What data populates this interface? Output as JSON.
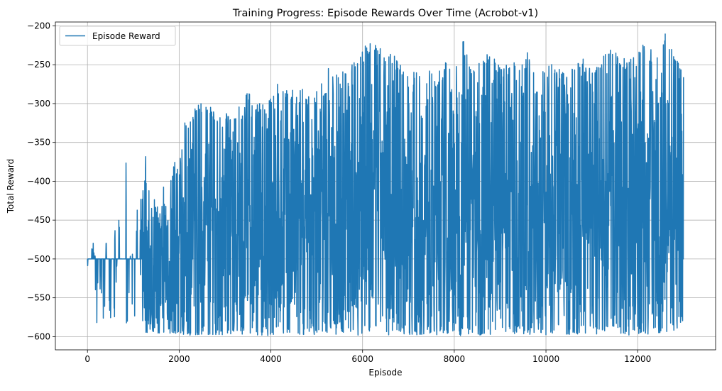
{
  "chart_data": {
    "type": "line",
    "title": "Training Progress: Episode Rewards Over Time (Acrobot-v1)",
    "xlabel": "Episode",
    "ylabel": "Total Reward",
    "xlim": [
      -700,
      13700
    ],
    "ylim": [
      -617,
      -195
    ],
    "xticks": [
      0,
      2000,
      4000,
      6000,
      8000,
      10000,
      12000
    ],
    "xtick_labels": [
      "0",
      "2000",
      "4000",
      "6000",
      "8000",
      "10000",
      "12000"
    ],
    "yticks": [
      -600,
      -550,
      -500,
      -450,
      -400,
      -350,
      -300,
      -250,
      -200
    ],
    "ytick_labels": [
      "−600",
      "−550",
      "−500",
      "−450",
      "−400",
      "−350",
      "−300",
      "−250",
      "−200"
    ],
    "grid": true,
    "legend_position": "top-left",
    "series": [
      {
        "name": "Episode Reward",
        "color": "#1f77b4",
        "x": [
          0,
          150,
          200,
          250,
          350,
          500,
          700,
          760,
          900,
          1000,
          1150,
          1230,
          1300,
          1400,
          1600,
          1750,
          1800,
          2000,
          2100,
          2200,
          2400,
          2600,
          2800,
          3000,
          3200,
          3400,
          3600,
          3800,
          4000,
          4200,
          4400,
          4600,
          4800,
          5000,
          5200,
          5400,
          5600,
          5800,
          6000,
          6200,
          6400,
          6600,
          6800,
          7000,
          7200,
          7400,
          7600,
          7800,
          8000,
          8200,
          8400,
          8600,
          8800,
          9000,
          9200,
          9400,
          9600,
          9800,
          10000,
          10200,
          10400,
          10600,
          10800,
          11000,
          11200,
          11400,
          11600,
          11800,
          12000,
          12200,
          12400,
          12600,
          12800,
          13000
        ],
        "max": [
          -500,
          -473,
          -470,
          -480,
          -465,
          -468,
          -448,
          -373,
          -345,
          -420,
          -440,
          -328,
          -395,
          -415,
          -442,
          -347,
          -360,
          -380,
          -325,
          -322,
          -295,
          -300,
          -310,
          -308,
          -318,
          -278,
          -290,
          -300,
          -288,
          -268,
          -283,
          -262,
          -290,
          -282,
          -250,
          -258,
          -258,
          -245,
          -228,
          -220,
          -225,
          -232,
          -245,
          -258,
          -260,
          -248,
          -270,
          -238,
          -248,
          -218,
          -258,
          -236,
          -237,
          -250,
          -248,
          -245,
          -225,
          -272,
          -252,
          -248,
          -262,
          -242,
          -240,
          -252,
          -238,
          -222,
          -242,
          -242,
          -228,
          -222,
          -238,
          -210,
          -238,
          -257
        ],
        "min": [
          -513,
          -500,
          -588,
          -592,
          -590,
          -578,
          -580,
          -585,
          -590,
          -585,
          -588,
          -598,
          -596,
          -596,
          -596,
          -597,
          -598,
          -598,
          -598,
          -598,
          -599,
          -597,
          -600,
          -598,
          -598,
          -597,
          -598,
          -598,
          -599,
          -597,
          -597,
          -598,
          -597,
          -598,
          -598,
          -599,
          -597,
          -598,
          -598,
          -597,
          -599,
          -598,
          -598,
          -597,
          -598,
          -597,
          -598,
          -597,
          -598,
          -599,
          -597,
          -598,
          -597,
          -598,
          -597,
          -598,
          -599,
          -597,
          -598,
          -596,
          -598,
          -599,
          -597,
          -598,
          -598,
          -597,
          -596,
          -598,
          -596,
          -597,
          -596,
          -595,
          -593,
          -580
        ]
      }
    ]
  }
}
